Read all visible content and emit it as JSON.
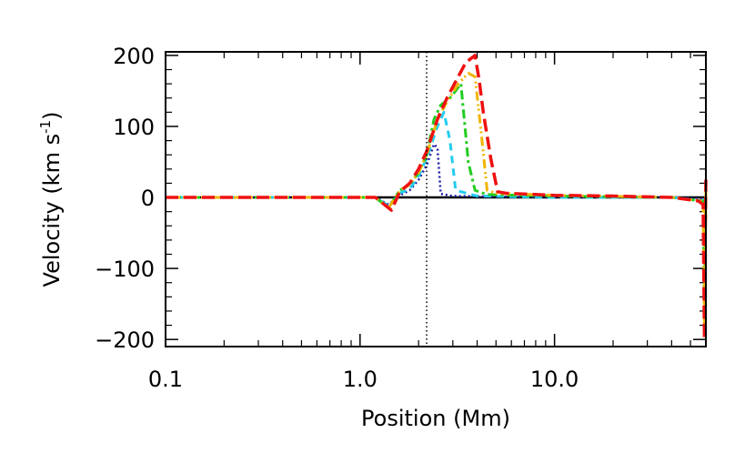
{
  "chart_data": {
    "type": "line",
    "title": "",
    "xlabel": "Position (Mm)",
    "ylabel_main": "Velocity (km s",
    "ylabel_sup": "-1",
    "ylabel_close": ")",
    "xscale": "log",
    "xlim": [
      0.1,
      60
    ],
    "ylim": [
      -210,
      205
    ],
    "xticks": [
      {
        "value": 0.1,
        "label": "0.1"
      },
      {
        "value": 1.0,
        "label": "1.0"
      },
      {
        "value": 10.0,
        "label": "10.0"
      }
    ],
    "yticks": [
      {
        "value": 200,
        "label": "200"
      },
      {
        "value": 100,
        "label": "100"
      },
      {
        "value": 0,
        "label": "0"
      },
      {
        "value": -100,
        "label": "−100"
      },
      {
        "value": -200,
        "label": "−200"
      }
    ],
    "vline": {
      "x": 2.2,
      "style": "dotted",
      "color": "#000000"
    },
    "grid": false,
    "series": [
      {
        "color": "#000000",
        "dash": "solid",
        "width": 2.5,
        "x": [
          0.1,
          1.2,
          1.45,
          2.0,
          3.0,
          10.0,
          40.0,
          58.0,
          60.0
        ],
        "y": [
          0,
          0,
          0,
          0,
          0,
          0,
          0,
          0,
          0
        ]
      },
      {
        "color": "#1a1aa6",
        "dash": "dotted",
        "width": 2.5,
        "x": [
          0.1,
          1.2,
          1.4,
          1.6,
          1.8,
          2.0,
          2.2,
          2.4,
          2.5,
          2.6,
          3.0,
          10.0,
          40.0,
          58.0,
          60.0
        ],
        "y": [
          0,
          0,
          -10,
          3,
          10,
          25,
          45,
          75,
          70,
          5,
          2,
          0,
          0,
          -2,
          0
        ]
      },
      {
        "color": "#22ccee",
        "dash": "dashed",
        "width": 3,
        "x": [
          0.1,
          1.2,
          1.4,
          1.6,
          1.8,
          2.0,
          2.2,
          2.5,
          2.7,
          2.9,
          3.1,
          4.0,
          10.0,
          40.0,
          58.0,
          60.0
        ],
        "y": [
          0,
          0,
          -12,
          6,
          12,
          30,
          55,
          100,
          120,
          80,
          10,
          2,
          0,
          0,
          -5,
          0
        ]
      },
      {
        "color": "#22cc22",
        "dash": "dashdot",
        "width": 3,
        "x": [
          0.1,
          1.2,
          1.4,
          1.6,
          1.8,
          2.0,
          2.2,
          2.4,
          2.6,
          2.9,
          3.1,
          3.3,
          3.6,
          3.9,
          4.5,
          10.0,
          40.0,
          58.0,
          59.0,
          60.0
        ],
        "y": [
          0,
          0,
          -15,
          10,
          18,
          35,
          60,
          110,
          130,
          140,
          150,
          160,
          50,
          10,
          4,
          2,
          0,
          -5,
          -150,
          0
        ]
      },
      {
        "color": "#f0b400",
        "dash": "dashdotdot",
        "width": 3,
        "x": [
          0.1,
          1.2,
          1.4,
          1.6,
          1.8,
          2.0,
          2.2,
          2.5,
          2.8,
          3.2,
          3.6,
          3.9,
          4.2,
          4.5,
          5.0,
          10.0,
          40.0,
          58.0,
          59.0,
          60.0
        ],
        "y": [
          0,
          0,
          -15,
          10,
          18,
          35,
          60,
          110,
          135,
          160,
          175,
          170,
          90,
          10,
          6,
          3,
          0,
          -5,
          -180,
          10
        ]
      },
      {
        "color": "#ee1111",
        "dash": "longdash",
        "width": 3.5,
        "x": [
          0.1,
          1.2,
          1.45,
          1.6,
          1.8,
          2.0,
          2.2,
          2.5,
          2.8,
          3.2,
          3.5,
          3.9,
          4.1,
          4.3,
          4.7,
          5.1,
          5.6,
          10.0,
          20.0,
          40.0,
          55.0,
          58.0,
          59.0,
          59.5,
          60.0
        ],
        "y": [
          0,
          0,
          -18,
          8,
          20,
          40,
          65,
          110,
          140,
          170,
          190,
          200,
          165,
          120,
          55,
          8,
          6,
          3,
          2,
          0,
          -5,
          -10,
          -200,
          -50,
          25
        ]
      }
    ]
  }
}
